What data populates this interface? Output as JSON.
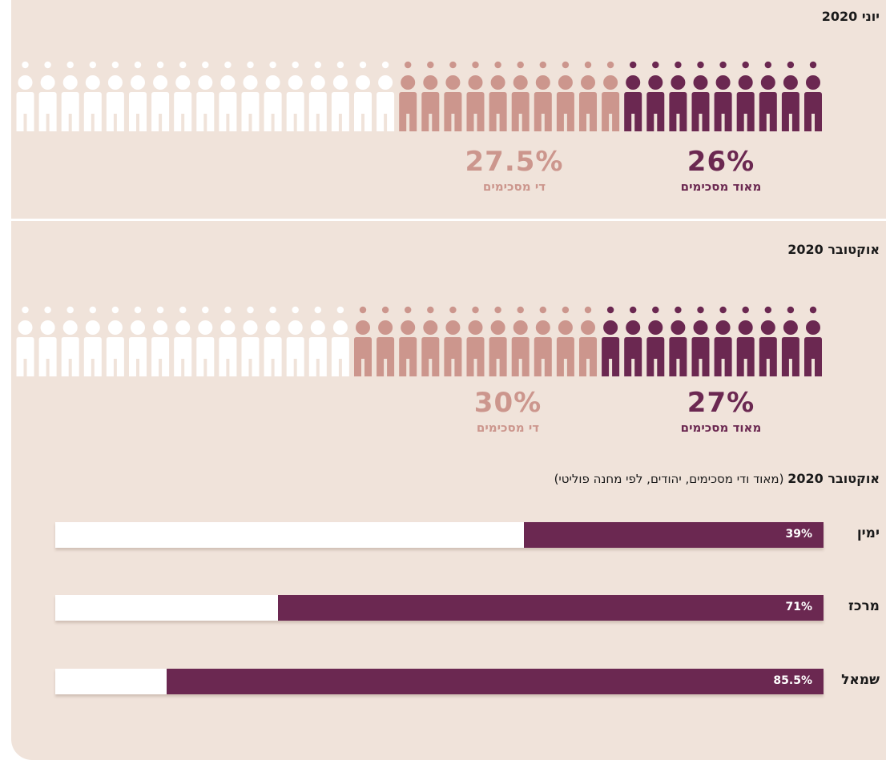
{
  "panels": [
    {
      "title": "יוני 2020",
      "very_agree_pct": "26%",
      "very_agree_label": "מאוד מסכימים",
      "somewhat_agree_pct": "27.5%",
      "somewhat_agree_label": "די מסכימים"
    },
    {
      "title": "אוקטובר 2020",
      "very_agree_pct": "27%",
      "very_agree_label": "מאוד מסכימים",
      "somewhat_agree_pct": "30%",
      "somewhat_agree_label": "די מסכימים"
    }
  ],
  "bars_section": {
    "title_bold": "אוקטובר 2020",
    "title_rest": "(מאוד ודי מסכימים, יהודים, לפי מחנה פוליטי)",
    "rows": [
      {
        "label": "ימין",
        "value_text": "39%"
      },
      {
        "label": "מרכז",
        "value_text": "71%"
      },
      {
        "label": "שמאל",
        "value_text": "85.5%"
      }
    ]
  },
  "colors": {
    "very_agree": "#6b2851",
    "somewhat_agree": "#cc968d",
    "rest": "#ffffff",
    "background": "#f0e3da"
  },
  "chart_data": [
    {
      "type": "bar",
      "title": "יוני 2020",
      "series": [
        {
          "name": "מאוד מסכימים",
          "values": [
            26
          ]
        },
        {
          "name": "די מסכימים",
          "values": [
            27.5
          ]
        }
      ],
      "ylim": [
        0,
        100
      ]
    },
    {
      "type": "bar",
      "title": "אוקטובר 2020",
      "series": [
        {
          "name": "מאוד מסכימים",
          "values": [
            27
          ]
        },
        {
          "name": "די מסכימים",
          "values": [
            30
          ]
        }
      ],
      "ylim": [
        0,
        100
      ]
    },
    {
      "type": "bar",
      "title": "אוקטובר 2020 (מאוד ודי מסכימים, יהודים, לפי מחנה פוליטי)",
      "categories": [
        "ימין",
        "מרכז",
        "שמאל"
      ],
      "values": [
        39,
        71,
        85.5
      ],
      "ylim": [
        0,
        100
      ]
    }
  ]
}
